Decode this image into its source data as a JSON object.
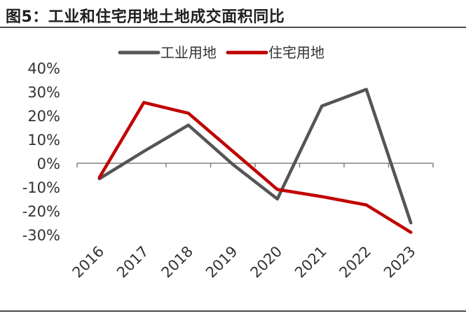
{
  "figure_title": "图5：工业和住宅用地土地成交面积同比",
  "chart_data": {
    "type": "line",
    "title": "图5：工业和住宅用地土地成交面积同比",
    "categories": [
      "2016",
      "2017",
      "2018",
      "2019",
      "2020",
      "2021",
      "2022",
      "2023"
    ],
    "series": [
      {
        "name": "工业用地",
        "color": "#555555",
        "values": [
          -6.5,
          5,
          16,
          -0.5,
          -15,
          24,
          31,
          -25
        ]
      },
      {
        "name": "住宅用地",
        "color": "#c00000",
        "values": [
          -6,
          25.5,
          21,
          5,
          -11,
          -14,
          -17.5,
          -29
        ]
      }
    ],
    "ylim": [
      -30,
      40
    ],
    "yticks": [
      -30,
      -20,
      -10,
      0,
      10,
      20,
      30,
      40
    ],
    "ytick_labels": [
      "-30%",
      "-20%",
      "-10%",
      "0%",
      "10%",
      "20%",
      "30%",
      "40%"
    ],
    "xlabel": "",
    "ylabel": "",
    "legend_position": "top-center",
    "grid": false
  }
}
